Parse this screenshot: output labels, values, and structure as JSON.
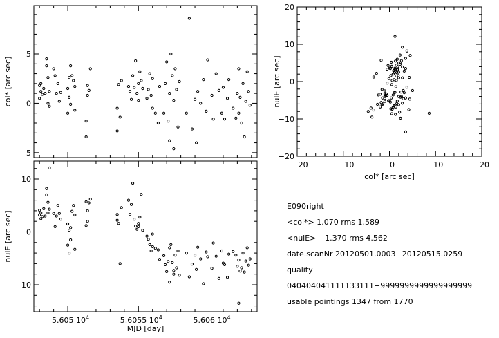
{
  "chart_data": [
    {
      "id": "col-vs-mjd",
      "type": "scatter",
      "ylabel": "col* [arc sec]",
      "xlabel": "",
      "xlim": [
        56047.6,
        56063.4
      ],
      "ylim": [
        -5.5,
        9.9
      ],
      "yticks": [
        -5,
        0,
        5
      ],
      "ytick_labels": [
        "−5",
        "0",
        "5"
      ],
      "x_field": 0,
      "y_field": 1
    },
    {
      "id": "nulE-vs-mjd",
      "type": "scatter",
      "ylabel": "nulE [arc sec]",
      "xlabel": "MJD [day]",
      "xlim": [
        56047.6,
        56063.4
      ],
      "ylim": [
        -15.1,
        13.4
      ],
      "yticks": [
        -10,
        0,
        10
      ],
      "ytick_labels": [
        "−10",
        "0",
        "10"
      ],
      "xticks": [
        56050,
        56055,
        56060
      ],
      "xtick_labels": [
        "5.605 10",
        "5.6055 10",
        "5.606 10"
      ],
      "xtick_exp": "4",
      "x_field": 0,
      "y_field": 2
    },
    {
      "id": "nulE-vs-col",
      "type": "scatter",
      "xlabel": "col* [arc sec]",
      "ylabel": "nulE [arc sec]",
      "xlim": [
        -20,
        20
      ],
      "ylim": [
        -20,
        20
      ],
      "xticks": [
        -20,
        -10,
        0,
        10,
        20
      ],
      "xtick_labels": [
        "−20",
        "−10",
        "0",
        "10",
        "20"
      ],
      "yticks": [
        -20,
        -10,
        0,
        10,
        20
      ],
      "ytick_labels": [
        "−20",
        "−10",
        "0",
        "10",
        "20"
      ],
      "x_field": 1,
      "y_field": 2
    }
  ],
  "points_fields": [
    "mjd",
    "col",
    "nulE"
  ],
  "points": [
    [
      56048.0,
      1.8,
      3.2
    ],
    [
      56048.0,
      0.5,
      4.1
    ],
    [
      56048.1,
      2.0,
      2.5
    ],
    [
      56048.1,
      1.2,
      3.6
    ],
    [
      56048.2,
      0.9,
      2.9
    ],
    [
      56048.3,
      1.5,
      4.4
    ],
    [
      56048.4,
      1.0,
      3.0
    ],
    [
      56048.5,
      3.8,
      8.2
    ],
    [
      56048.5,
      4.5,
      7.0
    ],
    [
      56048.6,
      2.6,
      5.6
    ],
    [
      56048.6,
      0.0,
      3.6
    ],
    [
      56048.7,
      -0.3,
      4.3
    ],
    [
      56048.7,
      1.2,
      12.1
    ],
    [
      56049.0,
      3.5,
      3.5
    ],
    [
      56049.1,
      2.8,
      1.0
    ],
    [
      56049.2,
      1.0,
      3.0
    ],
    [
      56049.3,
      2.0,
      5.0
    ],
    [
      56049.4,
      0.2,
      3.5
    ],
    [
      56049.5,
      1.1,
      2.4
    ],
    [
      56050.0,
      1.5,
      1.5
    ],
    [
      56050.0,
      -1.0,
      -2.5
    ],
    [
      56050.1,
      2.6,
      -4.0
    ],
    [
      56050.1,
      0.6,
      0.3
    ],
    [
      56050.2,
      3.8,
      -1.5
    ],
    [
      56050.2,
      -0.1,
      0.8
    ],
    [
      56050.3,
      2.8,
      3.9
    ],
    [
      56050.4,
      2.3,
      5.0
    ],
    [
      56050.5,
      1.7,
      3.2
    ],
    [
      56050.5,
      -0.7,
      -3.3
    ],
    [
      56051.3,
      -3.4,
      1.2
    ],
    [
      56051.3,
      -1.8,
      5.7
    ],
    [
      56051.4,
      1.8,
      4.0
    ],
    [
      56051.4,
      0.8,
      2.0
    ],
    [
      56051.5,
      1.3,
      5.5
    ],
    [
      56051.6,
      3.5,
      6.2
    ],
    [
      56053.5,
      -0.5,
      3.3
    ],
    [
      56053.5,
      -2.8,
      2.2
    ],
    [
      56053.6,
      1.9,
      1.6
    ],
    [
      56053.7,
      -1.4,
      -6.0
    ],
    [
      56053.8,
      2.3,
      4.6
    ],
    [
      56054.3,
      1.7,
      6.0
    ],
    [
      56054.4,
      1.2,
      3.3
    ],
    [
      56054.5,
      0.4,
      5.2
    ],
    [
      56054.6,
      2.8,
      9.2
    ],
    [
      56054.7,
      1.6,
      2.4
    ],
    [
      56054.8,
      4.3,
      1.1
    ],
    [
      56054.9,
      1.0,
      0.5
    ],
    [
      56055.0,
      2.0,
      1.0
    ],
    [
      56055.0,
      0.3,
      1.6
    ],
    [
      56055.1,
      3.2,
      2.8
    ],
    [
      56055.2,
      2.3,
      7.1
    ],
    [
      56055.3,
      1.5,
      0.3
    ],
    [
      56055.6,
      0.5,
      -0.8
    ],
    [
      56055.7,
      1.4,
      -1.4
    ],
    [
      56055.8,
      3.0,
      -2.4
    ],
    [
      56055.9,
      0.8,
      -3.6
    ],
    [
      56056.0,
      -0.5,
      -0.4
    ],
    [
      56056.0,
      2.5,
      -2.8
    ],
    [
      56056.2,
      -1.0,
      -3.1
    ],
    [
      56056.4,
      -2.0,
      -3.4
    ],
    [
      56056.5,
      1.7,
      -5.2
    ],
    [
      56056.8,
      -1.0,
      -4.5
    ],
    [
      56056.9,
      2.0,
      -6.2
    ],
    [
      56057.0,
      4.2,
      -7.5
    ],
    [
      56057.1,
      -1.8,
      -5.6
    ],
    [
      56057.2,
      1.0,
      -3.0
    ],
    [
      56057.2,
      -3.8,
      -9.5
    ],
    [
      56057.3,
      5.0,
      -2.4
    ],
    [
      56057.4,
      2.8,
      -5.8
    ],
    [
      56057.5,
      0.3,
      -7.3
    ],
    [
      56057.5,
      -4.6,
      -8.0
    ],
    [
      56057.6,
      3.5,
      -4.4
    ],
    [
      56057.7,
      1.4,
      -6.8
    ],
    [
      56057.8,
      -2.4,
      -3.6
    ],
    [
      56057.9,
      2.2,
      -8.2
    ],
    [
      56058.4,
      -1.0,
      -4.0
    ],
    [
      56058.6,
      8.6,
      -8.5
    ],
    [
      56058.8,
      -2.6,
      -6.1
    ],
    [
      56059.0,
      0.4,
      -4.4
    ],
    [
      56059.1,
      -4.0,
      -7.1
    ],
    [
      56059.2,
      1.2,
      -2.9
    ],
    [
      56059.4,
      0.0,
      -5.1
    ],
    [
      56059.6,
      2.4,
      -9.8
    ],
    [
      56059.8,
      -0.8,
      -3.8
    ],
    [
      56059.9,
      4.4,
      -4.7
    ],
    [
      56060.2,
      0.8,
      -6.9
    ],
    [
      56060.3,
      -1.6,
      -2.1
    ],
    [
      56060.5,
      3.0,
      -4.6
    ],
    [
      56060.7,
      1.3,
      -8.8
    ],
    [
      56060.9,
      -1.0,
      -3.6
    ],
    [
      56061.0,
      1.6,
      -5.9
    ],
    [
      56061.1,
      -1.6,
      -6.2
    ],
    [
      56061.3,
      0.5,
      -8.6
    ],
    [
      56061.4,
      2.4,
      -4.2
    ],
    [
      56061.7,
      -0.5,
      -3.7
    ],
    [
      56061.9,
      -1.5,
      -4.4
    ],
    [
      56062.0,
      1.0,
      -6.5
    ],
    [
      56062.1,
      -1.0,
      -5.3
    ],
    [
      56062.1,
      3.5,
      -13.5
    ],
    [
      56062.2,
      0.6,
      -7.4
    ],
    [
      56062.3,
      -2.0,
      -6.8
    ],
    [
      56062.4,
      2.0,
      -4.0
    ],
    [
      56062.5,
      -3.4,
      -7.6
    ],
    [
      56062.6,
      0.2,
      -5.5
    ],
    [
      56062.7,
      3.2,
      -3.0
    ],
    [
      56062.8,
      1.2,
      -6.3
    ],
    [
      56062.9,
      -0.2,
      -5.1
    ]
  ],
  "info": {
    "title": "E090right",
    "col_line": "<col*>    1.070 rms   1.589",
    "nul_line": "<nulE>   −1.370 rms   4.562",
    "date_line": "date.scanNr 20120501.0003−20120515.0259",
    "quality_label": "quality",
    "quality_value": "040404041111133111−9999999999999999999",
    "usable_line": "usable pointings   1347 from   1770"
  }
}
